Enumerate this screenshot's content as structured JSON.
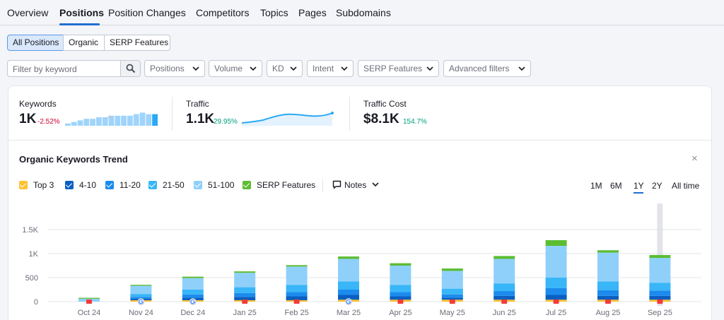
{
  "tabs": [
    "Overview",
    "Positions",
    "Position Changes",
    "Competitors",
    "Topics",
    "Pages",
    "Subdomains"
  ],
  "active_tab": "Positions",
  "position_types": [
    "All Positions",
    "Organic",
    "SERP Features"
  ],
  "active_position_type": "All Positions",
  "filters": {
    "search_placeholder": "Filter by keyword",
    "dropdowns": [
      "Positions",
      "Volume",
      "KD",
      "Intent",
      "SERP Features",
      "Advanced filters"
    ]
  },
  "metrics": {
    "keywords": {
      "label": "Keywords",
      "value": "1K",
      "delta": "-2.52%"
    },
    "traffic": {
      "label": "Traffic",
      "value": "1.1K",
      "delta": "29.95%"
    },
    "traffic_cost": {
      "label": "Traffic Cost",
      "value": "$8.1K",
      "delta": "154.7%"
    }
  },
  "trend": {
    "title": "Organic Keywords Trend",
    "close": "×",
    "legend": [
      {
        "label": "Top 3",
        "color": "#ffc130"
      },
      {
        "label": "4-10",
        "color": "#0a5fc1"
      },
      {
        "label": "11-20",
        "color": "#1c8bed"
      },
      {
        "label": "21-50",
        "color": "#38b6f7"
      },
      {
        "label": "51-100",
        "color": "#8fd0fb"
      },
      {
        "label": "SERP Features",
        "color": "#5cbd32"
      }
    ],
    "notes_label": "Notes",
    "ranges": [
      "1M",
      "6M",
      "1Y",
      "2Y",
      "All time"
    ],
    "active_range": "1Y"
  },
  "chart_data": {
    "type": "bar",
    "stacked": true,
    "categories": [
      "Oct 24",
      "Nov 24",
      "Dec 24",
      "Jan 25",
      "Feb 25",
      "Mar 25",
      "Apr 25",
      "May 25",
      "Jun 25",
      "Jul 25",
      "Aug 25",
      "Sep 25"
    ],
    "yticks": [
      "0",
      "500",
      "1K",
      "1.5K"
    ],
    "ylim": [
      0,
      1500
    ],
    "grid": true,
    "series": [
      {
        "name": "Top 3",
        "color": "#ffc130",
        "values": [
          0,
          30,
          30,
          30,
          30,
          40,
          40,
          40,
          40,
          40,
          40,
          40
        ]
      },
      {
        "name": "4-10",
        "color": "#0a5fc1",
        "values": [
          0,
          30,
          50,
          70,
          80,
          100,
          70,
          40,
          80,
          100,
          80,
          80
        ]
      },
      {
        "name": "11-20",
        "color": "#1c8bed",
        "values": [
          0,
          40,
          70,
          80,
          90,
          110,
          90,
          70,
          100,
          140,
          120,
          110
        ]
      },
      {
        "name": "21-50",
        "color": "#38b6f7",
        "values": [
          0,
          60,
          100,
          120,
          150,
          170,
          150,
          120,
          160,
          220,
          180,
          160
        ]
      },
      {
        "name": "51-100",
        "color": "#8fd0fb",
        "values": [
          60,
          170,
          240,
          300,
          380,
          470,
          400,
          370,
          510,
          660,
          600,
          520
        ]
      },
      {
        "name": "SERP Features",
        "color": "#5cbd32",
        "values": [
          20,
          20,
          30,
          30,
          30,
          50,
          50,
          50,
          60,
          120,
          50,
          60
        ]
      }
    ]
  }
}
